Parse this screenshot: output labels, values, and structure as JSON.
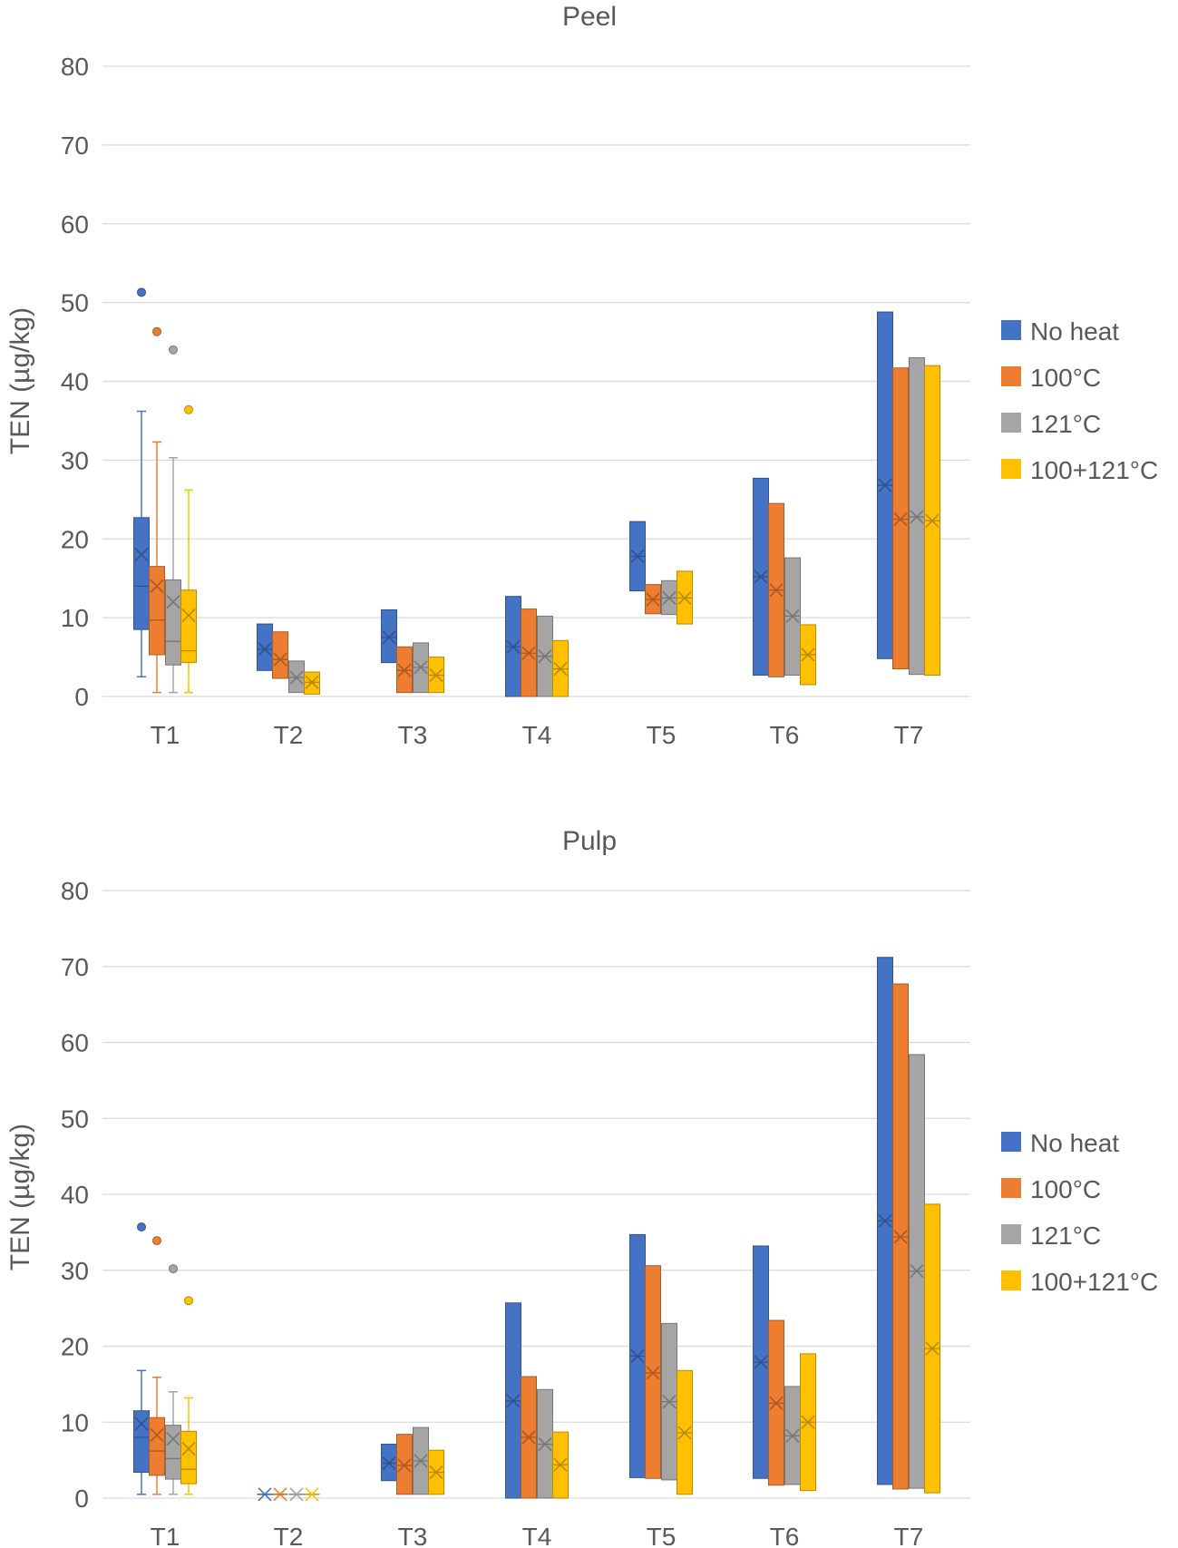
{
  "colors": {
    "No heat": "#4472c4",
    "100°C": "#ed7d31",
    "121°C": "#a5a5a5",
    "100+121°C": "#ffc000",
    "grid": "#d9d9d9",
    "text": "#595959"
  },
  "chart_data": [
    {
      "type": "box",
      "title": "Peel",
      "xlabel": "",
      "ylabel": "TEN (µg/kg)",
      "ylim": [
        0,
        80
      ],
      "yticks": [
        "0",
        "10",
        "20",
        "30",
        "40",
        "50",
        "60",
        "70",
        "80"
      ],
      "grid": true,
      "legend_position": "right",
      "categories": [
        "T1",
        "T2",
        "T3",
        "T4",
        "T5",
        "T6",
        "T7"
      ],
      "series": [
        {
          "name": "No heat",
          "boxes": [
            {
              "q1": 8.5,
              "median": 14,
              "q3": 22.7,
              "mean": 18,
              "whisker_low": 2.5,
              "whisker_high": 36.2,
              "outliers": [
                51.3
              ]
            },
            {
              "q1": 3.3,
              "median": 6,
              "q3": 9.2,
              "mean": 6
            },
            {
              "q1": 4.3,
              "median": 7.5,
              "q3": 11,
              "mean": 7.5
            },
            {
              "q1": 0,
              "median": 6.3,
              "q3": 12.7,
              "mean": 6.3
            },
            {
              "q1": 13.4,
              "median": 17.8,
              "q3": 22.2,
              "mean": 17.8
            },
            {
              "q1": 2.7,
              "median": 15.2,
              "q3": 27.7,
              "mean": 15.2
            },
            {
              "q1": 4.8,
              "median": 26.8,
              "q3": 48.8,
              "mean": 26.8
            }
          ]
        },
        {
          "name": "100°C",
          "boxes": [
            {
              "q1": 5.3,
              "median": 9.7,
              "q3": 16.5,
              "mean": 14,
              "whisker_low": 0.5,
              "whisker_high": 32.3,
              "outliers": [
                46.3
              ]
            },
            {
              "q1": 2.3,
              "median": 4.7,
              "q3": 8.2,
              "mean": 4.7
            },
            {
              "q1": 0.5,
              "median": 3.3,
              "q3": 6.3,
              "mean": 3.3
            },
            {
              "q1": 0,
              "median": 5.5,
              "q3": 11.1,
              "mean": 5.5
            },
            {
              "q1": 10.5,
              "median": 12.3,
              "q3": 14.2,
              "mean": 12.3
            },
            {
              "q1": 2.5,
              "median": 13.5,
              "q3": 24.5,
              "mean": 13.5
            },
            {
              "q1": 3.5,
              "median": 22.5,
              "q3": 41.7,
              "mean": 22.5
            }
          ]
        },
        {
          "name": "121°C",
          "boxes": [
            {
              "q1": 4,
              "median": 7,
              "q3": 14.8,
              "mean": 12,
              "whisker_low": 0.5,
              "whisker_high": 30.3,
              "outliers": [
                44
              ]
            },
            {
              "q1": 0.5,
              "median": 2.4,
              "q3": 4.5,
              "mean": 2.4
            },
            {
              "q1": 0.5,
              "median": 3.7,
              "q3": 6.8,
              "mean": 3.7
            },
            {
              "q1": 0,
              "median": 5.1,
              "q3": 10.2,
              "mean": 5.1
            },
            {
              "q1": 10.4,
              "median": 12.5,
              "q3": 14.7,
              "mean": 12.5
            },
            {
              "q1": 2.7,
              "median": 10.2,
              "q3": 17.6,
              "mean": 10.2
            },
            {
              "q1": 2.8,
              "median": 22.8,
              "q3": 43,
              "mean": 22.8
            }
          ]
        },
        {
          "name": "100+121°C",
          "boxes": [
            {
              "q1": 4.3,
              "median": 5.8,
              "q3": 13.5,
              "mean": 10.3,
              "whisker_low": 0.5,
              "whisker_high": 26.2,
              "outliers": [
                36.4
              ]
            },
            {
              "q1": 0.3,
              "median": 1.8,
              "q3": 3.1,
              "mean": 1.8
            },
            {
              "q1": 0.5,
              "median": 2.7,
              "q3": 5,
              "mean": 2.7
            },
            {
              "q1": 0,
              "median": 3.5,
              "q3": 7.1,
              "mean": 3.5
            },
            {
              "q1": 9.2,
              "median": 12.5,
              "q3": 15.9,
              "mean": 12.5
            },
            {
              "q1": 1.5,
              "median": 5.3,
              "q3": 9.1,
              "mean": 5.3
            },
            {
              "q1": 2.7,
              "median": 22.3,
              "q3": 42,
              "mean": 22.3
            }
          ]
        }
      ]
    },
    {
      "type": "box",
      "title": "Pulp",
      "xlabel": "",
      "ylabel": "TEN (µg/kg)",
      "ylim": [
        0,
        80
      ],
      "yticks": [
        "0",
        "10",
        "20",
        "30",
        "40",
        "50",
        "60",
        "70",
        "80"
      ],
      "grid": true,
      "legend_position": "right",
      "categories": [
        "T1",
        "T2",
        "T3",
        "T4",
        "T5",
        "T6",
        "T7"
      ],
      "series": [
        {
          "name": "No heat",
          "boxes": [
            {
              "q1": 3.4,
              "median": 8,
              "q3": 11.5,
              "mean": 9.8,
              "whisker_low": 0.5,
              "whisker_high": 16.8,
              "outliers": [
                35.7
              ]
            },
            {
              "q1": 0.5,
              "median": 0.5,
              "q3": 0.5,
              "mean": 0.5
            },
            {
              "q1": 2.3,
              "median": 4.6,
              "q3": 7.1,
              "mean": 4.6
            },
            {
              "q1": 0,
              "median": 12.8,
              "q3": 25.7,
              "mean": 12.8
            },
            {
              "q1": 2.7,
              "median": 18.7,
              "q3": 34.7,
              "mean": 18.7
            },
            {
              "q1": 2.6,
              "median": 17.9,
              "q3": 33.2,
              "mean": 17.9
            },
            {
              "q1": 1.8,
              "median": 36.5,
              "q3": 71.2,
              "mean": 36.5
            }
          ]
        },
        {
          "name": "100°C",
          "boxes": [
            {
              "q1": 3,
              "median": 6.2,
              "q3": 10.6,
              "mean": 8.3,
              "whisker_low": 0.5,
              "whisker_high": 15.9,
              "outliers": [
                33.9
              ]
            },
            {
              "q1": 0.5,
              "median": 0.5,
              "q3": 0.5,
              "mean": 0.5
            },
            {
              "q1": 0.5,
              "median": 4.3,
              "q3": 8.4,
              "mean": 4.3
            },
            {
              "q1": 0,
              "median": 8,
              "q3": 16,
              "mean": 8
            },
            {
              "q1": 2.6,
              "median": 16.5,
              "q3": 30.6,
              "mean": 16.5
            },
            {
              "q1": 1.7,
              "median": 12.5,
              "q3": 23.4,
              "mean": 12.5
            },
            {
              "q1": 1.2,
              "median": 34.4,
              "q3": 67.7,
              "mean": 34.4
            }
          ]
        },
        {
          "name": "121°C",
          "boxes": [
            {
              "q1": 2.5,
              "median": 5.2,
              "q3": 9.6,
              "mean": 7.8,
              "whisker_low": 0.5,
              "whisker_high": 14,
              "outliers": [
                30.2
              ]
            },
            {
              "q1": 0.5,
              "median": 0.5,
              "q3": 0.5,
              "mean": 0.5
            },
            {
              "q1": 0.5,
              "median": 4.9,
              "q3": 9.3,
              "mean": 4.9
            },
            {
              "q1": 0,
              "median": 7.1,
              "q3": 14.3,
              "mean": 7.1
            },
            {
              "q1": 2.4,
              "median": 12.7,
              "q3": 23,
              "mean": 12.7
            },
            {
              "q1": 1.8,
              "median": 8.2,
              "q3": 14.7,
              "mean": 8.2
            },
            {
              "q1": 1.3,
              "median": 29.9,
              "q3": 58.4,
              "mean": 29.9
            }
          ]
        },
        {
          "name": "100+121°C",
          "boxes": [
            {
              "q1": 1.9,
              "median": 3.8,
              "q3": 8.8,
              "mean": 6.5,
              "whisker_low": 0.5,
              "whisker_high": 13.2,
              "outliers": [
                26
              ]
            },
            {
              "q1": 0.5,
              "median": 0.5,
              "q3": 0.5,
              "mean": 0.5
            },
            {
              "q1": 0.5,
              "median": 3.4,
              "q3": 6.3,
              "mean": 3.4
            },
            {
              "q1": 0,
              "median": 4.4,
              "q3": 8.7,
              "mean": 4.4
            },
            {
              "q1": 0.5,
              "median": 8.6,
              "q3": 16.8,
              "mean": 8.6
            },
            {
              "q1": 1,
              "median": 10,
              "q3": 19,
              "mean": 10
            },
            {
              "q1": 0.7,
              "median": 19.7,
              "q3": 38.7,
              "mean": 19.7
            }
          ]
        }
      ]
    }
  ]
}
